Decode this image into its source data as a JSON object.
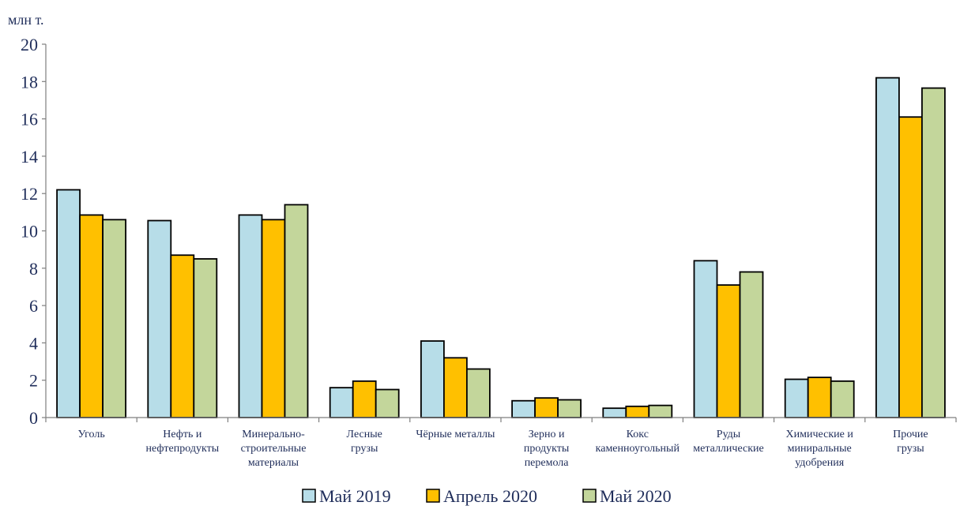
{
  "chart_data": {
    "type": "bar",
    "ylabel": "млн т.",
    "ylim": [
      0,
      20
    ],
    "yticks": [
      "0",
      "2",
      "4",
      "6",
      "8",
      "10",
      "12",
      "14",
      "16",
      "18",
      "20"
    ],
    "grid": false,
    "legend_position": "bottom",
    "categories": [
      [
        "Уголь"
      ],
      [
        "Нефть и",
        "нефтепродукты"
      ],
      [
        "Минерально-",
        "строительные",
        "материалы"
      ],
      [
        "Лесные",
        "грузы"
      ],
      [
        "Чёрные металлы"
      ],
      [
        "Зерно и",
        "продукты",
        "перемола"
      ],
      [
        "Кокс",
        "каменноугольный"
      ],
      [
        "Руды",
        "металлические"
      ],
      [
        "Химические и",
        "миниральные",
        "удобрения"
      ],
      [
        "Прочие",
        "грузы"
      ]
    ],
    "series": [
      {
        "name": "Май 2019",
        "color": "#b7dde8",
        "values": [
          12.2,
          10.55,
          10.85,
          1.6,
          4.1,
          0.9,
          0.5,
          8.4,
          2.05,
          18.2
        ]
      },
      {
        "name": "Апрель 2020",
        "color": "#ffc000",
        "values": [
          10.85,
          8.7,
          10.6,
          1.95,
          3.2,
          1.05,
          0.6,
          7.1,
          2.15,
          16.1
        ]
      },
      {
        "name": "Май 2020",
        "color": "#c3d69b",
        "values": [
          10.6,
          8.5,
          11.4,
          1.5,
          2.6,
          0.95,
          0.65,
          7.8,
          1.95,
          17.65
        ]
      }
    ]
  }
}
